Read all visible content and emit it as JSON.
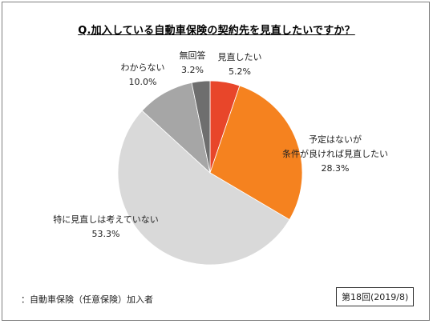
{
  "title": "Q.加入している自動車保険の契約先を見直したいですか？",
  "chart_data": {
    "type": "pie",
    "slices": [
      {
        "label_lines": [
          "見直したい"
        ],
        "value": 5.2,
        "value_text": "5.2%",
        "color": "#e8462a"
      },
      {
        "label_lines": [
          "予定はないが",
          "条件が良ければ見直したい"
        ],
        "value": 28.3,
        "value_text": "28.3%",
        "color": "#f5821f"
      },
      {
        "label_lines": [
          "特に見直しは考えていない"
        ],
        "value": 53.3,
        "value_text": "53.3%",
        "color": "#d9d9d9"
      },
      {
        "label_lines": [
          "わからない"
        ],
        "value": 10.0,
        "value_text": "10.0%",
        "color": "#a6a6a6"
      },
      {
        "label_lines": [
          "無回答"
        ],
        "value": 3.2,
        "value_text": "3.2%",
        "color": "#6e6e6e"
      }
    ]
  },
  "footnote": "：自動車保険（任意保険）加入者",
  "survey_label": "第18回(2019/8)"
}
